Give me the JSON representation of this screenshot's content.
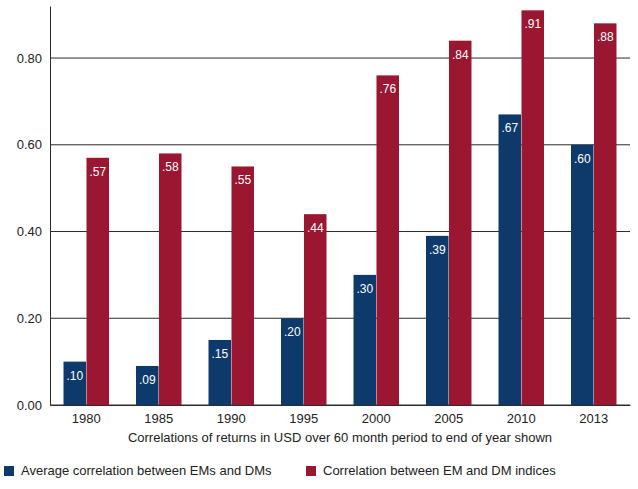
{
  "chart_data": {
    "type": "bar",
    "x_label": "Correlations of returns in USD over 60 month period to end of year shown",
    "categories": [
      "1980",
      "1985",
      "1990",
      "1995",
      "2000",
      "2005",
      "2010",
      "2013"
    ],
    "series": [
      {
        "name": "Average correlation between EMs and DMs",
        "color": "#0e3a6b",
        "values": [
          0.1,
          0.09,
          0.15,
          0.2,
          0.3,
          0.39,
          0.67,
          0.6
        ],
        "value_labels": [
          ".10",
          ".09",
          ".15",
          ".20",
          ".30",
          ".39",
          ".67",
          ".60"
        ]
      },
      {
        "name": "Correlation between EM and DM indices",
        "color": "#9b1631",
        "values": [
          0.57,
          0.58,
          0.55,
          0.44,
          0.76,
          0.84,
          0.91,
          0.88
        ],
        "value_labels": [
          ".57",
          ".58",
          ".55",
          ".44",
          ".76",
          ".84",
          ".91",
          ".88"
        ]
      }
    ],
    "ylim": [
      0,
      0.92
    ],
    "yticks": [
      {
        "value": 0,
        "label": "0.00"
      },
      {
        "value": 0.2,
        "label": "0.20"
      },
      {
        "value": 0.4,
        "label": "0.40"
      },
      {
        "value": 0.6,
        "label": "0.60"
      },
      {
        "value": 0.8,
        "label": "0.80"
      }
    ],
    "grid": true,
    "legend": "bottom",
    "data_labels": true
  }
}
